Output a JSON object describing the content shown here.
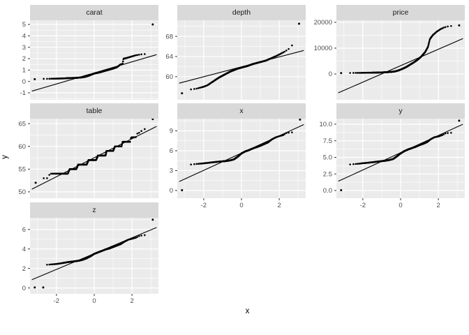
{
  "figure": {
    "background": "#FFFFFF"
  },
  "theme": {
    "panel_bg": "#EBEBEB",
    "grid_color": "#FFFFFF",
    "strip_bg": "#D9D9D9",
    "strip_text_color": "#1A1A1A",
    "tick_label_color": "#4D4D4D",
    "tick_mark_color": "#333333",
    "point_color": "#000000",
    "line_color": "#000000"
  },
  "chart_data": {
    "type": "scatter",
    "subtype": "normal-qq-plot-faceted",
    "title": "",
    "xlabel": "x",
    "ylabel": "y",
    "xlim": [
      -3.4,
      3.4
    ],
    "x_ticks": [
      -2,
      0,
      2
    ],
    "x_tick_labels": [
      "-2",
      "0",
      "2"
    ],
    "x_minor": [
      -3,
      -1,
      1,
      3
    ],
    "n_points": 400,
    "legend": "none",
    "facets": [
      {
        "label": "carat",
        "ylim": [
          -1.61,
          5.37
        ],
        "y_ticks": [
          -1,
          0,
          1,
          2,
          3,
          4,
          5
        ],
        "y_tick_labels": [
          "-1",
          "0",
          "1",
          "2",
          "3",
          "4",
          "5"
        ],
        "y_minor": [
          -1.5,
          -0.5,
          0.5,
          1.5,
          2.5,
          3.5,
          4.5
        ],
        "show_x_axis": false,
        "line": [
          -3.3,
          -0.85,
          3.3,
          2.35
        ],
        "anchors": [
          [
            -2.95,
            0.22
          ],
          [
            -2.6,
            0.23
          ],
          [
            -2.3,
            0.24
          ],
          [
            -2.0,
            0.25
          ],
          [
            -1.6,
            0.27
          ],
          [
            -1.3,
            0.3
          ],
          [
            -1.0,
            0.31
          ],
          [
            -0.7,
            0.35
          ],
          [
            -0.5,
            0.4
          ],
          [
            -0.3,
            0.5
          ],
          [
            0,
            0.7
          ],
          [
            0.3,
            0.8
          ],
          [
            0.5,
            0.9
          ],
          [
            0.8,
            1.04
          ],
          [
            1.0,
            1.13
          ],
          [
            1.2,
            1.25
          ],
          [
            1.4,
            1.5
          ],
          [
            1.5,
            1.52
          ],
          [
            1.55,
            2.0
          ],
          [
            1.7,
            2.05
          ],
          [
            2.0,
            2.2
          ],
          [
            2.2,
            2.3
          ],
          [
            2.5,
            2.38
          ],
          [
            2.8,
            2.42
          ],
          [
            2.95,
            2.6
          ]
        ],
        "outliers": [
          [
            -3.15,
            0.2
          ],
          [
            3.1,
            5.0
          ]
        ]
      },
      {
        "label": "depth",
        "ylim": [
          55.4,
          71.2
        ],
        "y_ticks": [
          60,
          64,
          68
        ],
        "y_tick_labels": [
          "60",
          "64",
          "68"
        ],
        "y_minor": [
          58,
          62,
          66,
          70
        ],
        "show_x_axis": false,
        "line": [
          -3.3,
          58.7,
          3.3,
          65.2
        ],
        "anchors": [
          [
            -2.95,
            57.3
          ],
          [
            -2.8,
            57.4
          ],
          [
            -2.6,
            57.5
          ],
          [
            -2.4,
            57.6
          ],
          [
            -2.2,
            57.8
          ],
          [
            -2.0,
            58.0
          ],
          [
            -1.8,
            58.3
          ],
          [
            -1.6,
            58.8
          ],
          [
            -1.4,
            59.3
          ],
          [
            -1.2,
            59.8
          ],
          [
            -1.0,
            60.2
          ],
          [
            -0.8,
            60.6
          ],
          [
            -0.6,
            61.0
          ],
          [
            -0.4,
            61.3
          ],
          [
            -0.2,
            61.6
          ],
          [
            0,
            61.8
          ],
          [
            0.3,
            62.1
          ],
          [
            0.6,
            62.5
          ],
          [
            1.0,
            62.9
          ],
          [
            1.3,
            63.2
          ],
          [
            1.6,
            63.7
          ],
          [
            1.9,
            64.2
          ],
          [
            2.1,
            64.6
          ],
          [
            2.3,
            65.0
          ],
          [
            2.5,
            65.5
          ],
          [
            2.7,
            66.3
          ],
          [
            2.95,
            67.2
          ]
        ],
        "outliers": [
          [
            -3.15,
            56.7
          ],
          [
            3.05,
            70.5
          ]
        ]
      },
      {
        "label": "price",
        "ylim": [
          -10000,
          20800
        ],
        "y_ticks": [
          0,
          10000,
          20000
        ],
        "y_tick_labels": [
          "0",
          "10000",
          "20000"
        ],
        "y_minor": [
          -5000,
          5000,
          15000
        ],
        "show_x_axis": false,
        "line": [
          -3.3,
          -7300,
          3.3,
          13700
        ],
        "anchors": [
          [
            -2.95,
            350
          ],
          [
            -2.6,
            400
          ],
          [
            -2.2,
            430
          ],
          [
            -1.8,
            470
          ],
          [
            -1.4,
            520
          ],
          [
            -1.0,
            600
          ],
          [
            -0.7,
            700
          ],
          [
            -0.5,
            800
          ],
          [
            -0.3,
            1000
          ],
          [
            -0.1,
            1400
          ],
          [
            0.1,
            2000
          ],
          [
            0.3,
            2700
          ],
          [
            0.5,
            3600
          ],
          [
            0.7,
            4500
          ],
          [
            0.9,
            5500
          ],
          [
            1.1,
            6800
          ],
          [
            1.3,
            8500
          ],
          [
            1.45,
            10500
          ],
          [
            1.55,
            13500
          ],
          [
            1.7,
            15000
          ],
          [
            1.9,
            16300
          ],
          [
            2.1,
            17300
          ],
          [
            2.3,
            18000
          ],
          [
            2.5,
            18400
          ],
          [
            2.7,
            18600
          ],
          [
            2.95,
            18700
          ]
        ],
        "outliers": [
          [
            -3.15,
            350
          ],
          [
            3.1,
            18800
          ]
        ]
      },
      {
        "label": "table",
        "ylim": [
          48.6,
          66.1
        ],
        "y_ticks": [
          50,
          55,
          60,
          65
        ],
        "y_tick_labels": [
          "50",
          "55",
          "60",
          "65"
        ],
        "y_minor": [
          52.5,
          57.5,
          62.5
        ],
        "show_x_axis": false,
        "line": [
          -3.3,
          50.6,
          3.3,
          64.4
        ],
        "anchors": [
          [
            -2.85,
            53
          ],
          [
            -2.45,
            53
          ],
          [
            -2.35,
            54
          ],
          [
            -1.4,
            54
          ],
          [
            -1.3,
            55
          ],
          [
            -0.95,
            55
          ],
          [
            -0.85,
            56
          ],
          [
            -0.4,
            56
          ],
          [
            -0.3,
            57
          ],
          [
            0.1,
            57
          ],
          [
            0.2,
            58
          ],
          [
            0.6,
            58
          ],
          [
            0.65,
            59
          ],
          [
            1.0,
            59
          ],
          [
            1.1,
            60
          ],
          [
            1.45,
            60
          ],
          [
            1.5,
            61
          ],
          [
            1.9,
            61
          ],
          [
            1.95,
            62
          ],
          [
            2.2,
            62
          ],
          [
            2.3,
            63
          ],
          [
            2.45,
            63
          ],
          [
            2.55,
            63.8
          ],
          [
            2.7,
            63.8
          ],
          [
            2.85,
            65
          ],
          [
            2.95,
            65
          ]
        ],
        "outliers": [
          [
            -3.1,
            52
          ],
          [
            3.1,
            66
          ]
        ]
      },
      {
        "label": "x",
        "ylim": [
          -1.16,
          10.84
        ],
        "y_ticks": [
          0,
          3,
          6,
          9
        ],
        "y_tick_labels": [
          "0",
          "3",
          "6",
          "9"
        ],
        "y_minor": [
          1.5,
          4.5,
          7.5,
          10.5
        ],
        "show_x_axis": true,
        "line": [
          -3.3,
          1.35,
          3.3,
          9.95
        ],
        "anchors": [
          [
            -2.75,
            3.9
          ],
          [
            -2.6,
            3.95
          ],
          [
            -2.4,
            4.0
          ],
          [
            -2.2,
            4.05
          ],
          [
            -2.0,
            4.1
          ],
          [
            -1.7,
            4.2
          ],
          [
            -1.4,
            4.3
          ],
          [
            -1.1,
            4.38
          ],
          [
            -0.8,
            4.45
          ],
          [
            -0.6,
            4.55
          ],
          [
            -0.4,
            4.7
          ],
          [
            -0.2,
            5.1
          ],
          [
            0,
            5.6
          ],
          [
            0.2,
            5.9
          ],
          [
            0.4,
            6.1
          ],
          [
            0.6,
            6.35
          ],
          [
            0.8,
            6.55
          ],
          [
            1.0,
            6.75
          ],
          [
            1.2,
            7.0
          ],
          [
            1.4,
            7.25
          ],
          [
            1.6,
            7.7
          ],
          [
            1.8,
            8.0
          ],
          [
            2.0,
            8.2
          ],
          [
            2.2,
            8.35
          ],
          [
            2.4,
            8.7
          ],
          [
            2.6,
            8.75
          ],
          [
            2.8,
            8.8
          ]
        ],
        "outliers": [
          [
            -3.15,
            0.05
          ],
          [
            3.1,
            10.7
          ]
        ]
      },
      {
        "label": "y",
        "ylim": [
          -1.16,
          10.84
        ],
        "y_ticks": [
          0,
          2.5,
          5,
          7.5,
          10
        ],
        "y_tick_labels": [
          "0.0",
          "2.5",
          "5.0",
          "7.5",
          "10.0"
        ],
        "y_minor": [
          1.25,
          3.75,
          6.25,
          8.75
        ],
        "show_x_axis": true,
        "line": [
          -3.3,
          1.4,
          3.3,
          10.0
        ],
        "anchors": [
          [
            -2.8,
            3.9
          ],
          [
            -2.6,
            3.95
          ],
          [
            -2.4,
            4.0
          ],
          [
            -2.2,
            4.05
          ],
          [
            -2.0,
            4.12
          ],
          [
            -1.7,
            4.2
          ],
          [
            -1.4,
            4.3
          ],
          [
            -1.1,
            4.4
          ],
          [
            -0.8,
            4.5
          ],
          [
            -0.6,
            4.6
          ],
          [
            -0.4,
            4.75
          ],
          [
            -0.2,
            5.15
          ],
          [
            0,
            5.6
          ],
          [
            0.2,
            5.95
          ],
          [
            0.4,
            6.2
          ],
          [
            0.6,
            6.4
          ],
          [
            0.8,
            6.6
          ],
          [
            1.0,
            6.85
          ],
          [
            1.2,
            7.05
          ],
          [
            1.4,
            7.3
          ],
          [
            1.6,
            7.75
          ],
          [
            1.8,
            8.05
          ],
          [
            2.0,
            8.15
          ],
          [
            2.2,
            8.35
          ],
          [
            2.4,
            8.65
          ],
          [
            2.6,
            8.7
          ],
          [
            2.8,
            8.72
          ]
        ],
        "outliers": [
          [
            -3.15,
            0.05
          ],
          [
            3.1,
            10.54
          ]
        ]
      },
      {
        "label": "z",
        "ylim": [
          -0.6,
          7.2
        ],
        "y_ticks": [
          0,
          2,
          4,
          6
        ],
        "y_tick_labels": [
          "0",
          "2",
          "4",
          "6"
        ],
        "y_minor": [
          1,
          3,
          5,
          7
        ],
        "show_x_axis": true,
        "line": [
          -3.3,
          0.85,
          3.3,
          6.2
        ],
        "anchors": [
          [
            -2.55,
            2.38
          ],
          [
            -2.4,
            2.4
          ],
          [
            -2.2,
            2.43
          ],
          [
            -2.0,
            2.46
          ],
          [
            -1.7,
            2.55
          ],
          [
            -1.4,
            2.65
          ],
          [
            -1.1,
            2.72
          ],
          [
            -0.8,
            2.8
          ],
          [
            -0.6,
            2.9
          ],
          [
            -0.4,
            3.05
          ],
          [
            -0.2,
            3.25
          ],
          [
            0,
            3.5
          ],
          [
            0.2,
            3.65
          ],
          [
            0.4,
            3.8
          ],
          [
            0.6,
            3.95
          ],
          [
            0.8,
            4.05
          ],
          [
            1.0,
            4.2
          ],
          [
            1.2,
            4.35
          ],
          [
            1.4,
            4.5
          ],
          [
            1.6,
            4.75
          ],
          [
            1.8,
            4.95
          ],
          [
            2.0,
            5.05
          ],
          [
            2.2,
            5.15
          ],
          [
            2.4,
            5.35
          ],
          [
            2.6,
            5.4
          ],
          [
            2.8,
            5.45
          ]
        ],
        "outliers": [
          [
            -3.15,
            0.05
          ],
          [
            -2.7,
            0.05
          ],
          [
            3.1,
            7.0
          ]
        ]
      }
    ]
  }
}
